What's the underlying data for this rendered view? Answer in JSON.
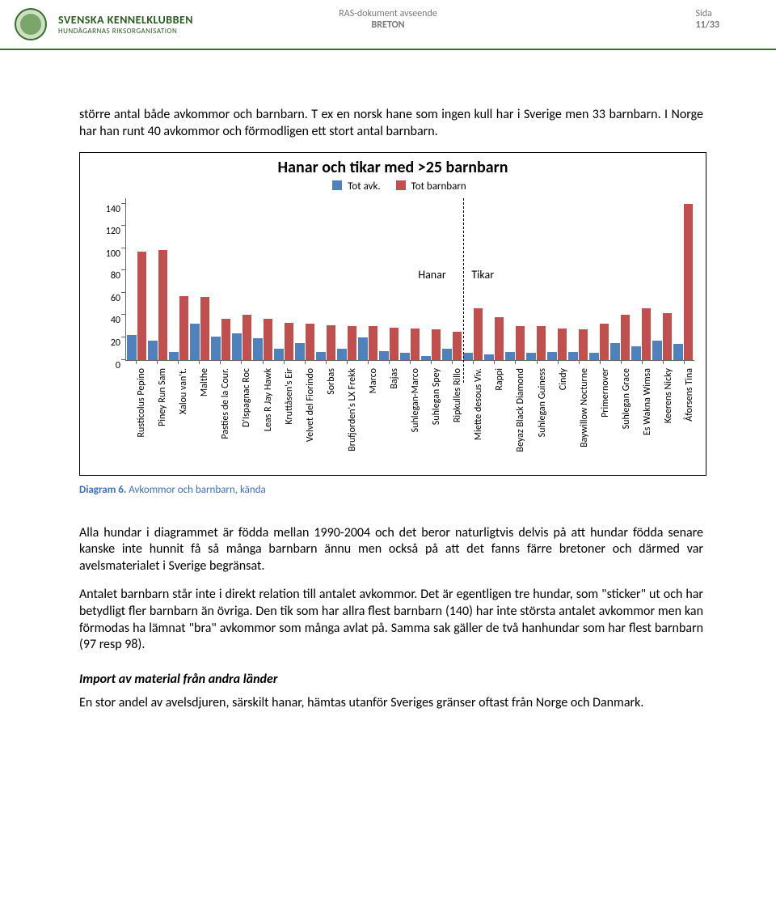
{
  "header": {
    "org_line1": "SVENSKA KENNELKLUBBEN",
    "org_line2": "HUNDÄGARNAS RIKSORGANISATION",
    "center_l1": "RAS-dokument avseende",
    "center_l2": "BRETON",
    "right_l1": "Sida",
    "right_l2": "11/33"
  },
  "body": {
    "p1": "större antal både avkommor och barnbarn. T ex en norsk hane som ingen kull har i Sverige men 33 barnbarn. I Norge har han runt 40 avkommor och förmodligen ett stort antal barnbarn.",
    "caption_prefix": "Diagram 6.",
    "caption_rest": " Avkommor och barnbarn, kända",
    "p2": "Alla hundar i diagrammet är födda mellan 1990-2004 och det beror naturligtvis delvis på att hundar födda senare kanske inte hunnit få så många barnbarn ännu men också på att det fanns färre bretoner och därmed var avelsmaterialet i Sverige begränsat.",
    "p3": "Antalet barnbarn står inte i direkt relation till antalet avkommor. Det är egentligen tre hundar, som \"sticker\" ut och har betydligt fler barnbarn än övriga. Den tik som har allra flest barnbarn (140) har inte största antalet avkommor men kan förmodas ha lämnat \"bra\" avkommor som många avlat på. Samma sak gäller de två hanhundar som har flest barnbarn (97 resp 98).",
    "h1": "Import av material från andra länder",
    "p4": "En stor andel av avelsdjuren, särskilt hanar, hämtas utanför Sveriges gränser oftast från Norge och Danmark."
  },
  "chart": {
    "title": "Hanar och tikar med >25 barnbarn",
    "legend_a": "Tot avk.",
    "legend_b": "Tot barnbarn",
    "color_a": "#4f81bd",
    "color_b": "#c0504d",
    "ymax": 145,
    "yticks": [
      0,
      20,
      40,
      60,
      80,
      100,
      120,
      140
    ],
    "zone_a": "Hanar",
    "zone_b": "Tikar",
    "divider_after_index": 15,
    "categories": [
      {
        "label": "Rusticolus Pepíno",
        "a": 22,
        "b": 97
      },
      {
        "label": "Piney Run Sam",
        "a": 17,
        "b": 98
      },
      {
        "label": "Xalou van't.",
        "a": 7,
        "b": 57
      },
      {
        "label": "Malthe",
        "a": 32,
        "b": 56
      },
      {
        "label": "Pasties de la Cour.",
        "a": 21,
        "b": 37
      },
      {
        "label": "D'Ispagnac Roc",
        "a": 24,
        "b": 40
      },
      {
        "label": "Leas R Jay Hawk",
        "a": 19,
        "b": 37
      },
      {
        "label": "Kruttåsen's Eir",
        "a": 10,
        "b": 33
      },
      {
        "label": "Velvet del Fiorindo",
        "a": 15,
        "b": 32
      },
      {
        "label": "Sorbas",
        "a": 7,
        "b": 31
      },
      {
        "label": "Brufjorden's LX Frekk",
        "a": 10,
        "b": 30
      },
      {
        "label": "Marco",
        "a": 20,
        "b": 30
      },
      {
        "label": "Bajas",
        "a": 8,
        "b": 29
      },
      {
        "label": "Suhlegan-Marco",
        "a": 6,
        "b": 28
      },
      {
        "label": "Suhlegan Spey",
        "a": 3,
        "b": 27
      },
      {
        "label": "Ripkulles Rillo",
        "a": 10,
        "b": 25
      },
      {
        "label": "Miette desous Viv.",
        "a": 6,
        "b": 46
      },
      {
        "label": "Rappi",
        "a": 5,
        "b": 38
      },
      {
        "label": "Beyaz Black Diamond",
        "a": 7,
        "b": 30
      },
      {
        "label": "Suhlegan Guiness",
        "a": 6,
        "b": 30
      },
      {
        "label": "Cindy",
        "a": 7,
        "b": 28
      },
      {
        "label": "Baywillow Nocturne",
        "a": 7,
        "b": 27
      },
      {
        "label": "Primernover",
        "a": 6,
        "b": 32
      },
      {
        "label": "Suhlegan Grace",
        "a": 15,
        "b": 40
      },
      {
        "label": "Es Wakna Wimsa",
        "a": 12,
        "b": 46
      },
      {
        "label": "Keerens Nicky",
        "a": 17,
        "b": 42
      },
      {
        "label": "Åforsens Tina",
        "a": 14,
        "b": 140
      }
    ]
  }
}
